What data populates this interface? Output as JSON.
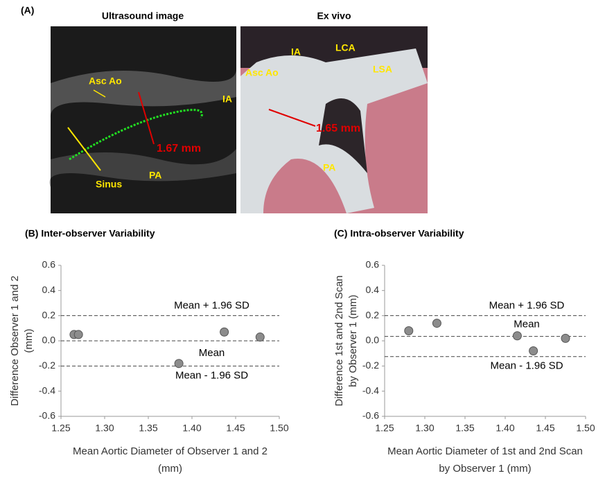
{
  "panel_a": {
    "label": "(A)",
    "images": [
      {
        "title": "Ultrasound image",
        "annotations": [
          "Asc Ao",
          "IA",
          "1.67 mm",
          "Sinus",
          "PA"
        ]
      },
      {
        "title": "Ex vivo",
        "annotations": [
          "IA",
          "LCA",
          "Asc Ao",
          "LSA",
          "1.65 mm",
          "PA"
        ]
      }
    ]
  },
  "chart_data": [
    {
      "type": "scatter",
      "title": "(B) Inter-observer Variability",
      "xlabel": [
        "Mean Aortic Diameter of Observer 1 and 2",
        "(mm)"
      ],
      "ylabel": [
        "Difference Observer 1 and 2",
        "(mm)"
      ],
      "x": [
        1.265,
        1.27,
        1.385,
        1.437,
        1.478
      ],
      "values": [
        0.05,
        0.05,
        -0.18,
        0.07,
        0.03
      ],
      "color": "#8c8c8c",
      "xlim": [
        1.25,
        1.5
      ],
      "ylim": [
        -0.6,
        0.6
      ],
      "xticks": [
        1.25,
        {
          "value": 1.3,
          "label": "1.30"
        },
        1.35,
        {
          "value": 1.4,
          "label": "1.40"
        },
        1.45,
        {
          "value": 1.5,
          "label": "1.50"
        }
      ],
      "yticks": [
        -0.6,
        -0.4,
        -0.2,
        {
          "value": 0,
          "label": "0.0"
        },
        0.2,
        0.4,
        0.6
      ],
      "reference_lines": [
        {
          "value": 0.2,
          "label": "Mean + 1.96 SD"
        },
        {
          "value": 0,
          "label": "Mean"
        },
        {
          "value": -0.2,
          "label": "Mean - 1.96 SD"
        }
      ]
    },
    {
      "type": "scatter",
      "title": "(C) Intra-observer Variability",
      "xlabel": [
        "Mean Aortic Diameter of 1st and 2nd Scan",
        "by Observer 1 (mm)"
      ],
      "ylabel": [
        "Difference 1st and 2nd Scan",
        "by Observer 1 (mm)"
      ],
      "x": [
        1.28,
        1.315,
        1.415,
        1.435,
        1.475
      ],
      "values": [
        0.08,
        0.14,
        0.04,
        -0.08,
        0.02
      ],
      "color": "#8c8c8c",
      "xlim": [
        1.25,
        1.5
      ],
      "ylim": [
        -0.6,
        0.6
      ],
      "xticks": [
        1.25,
        {
          "value": 1.3,
          "label": "1.30"
        },
        1.35,
        {
          "value": 1.4,
          "label": "1.40"
        },
        1.45,
        {
          "value": 1.5,
          "label": "1.50"
        }
      ],
      "yticks": [
        -0.6,
        -0.4,
        -0.2,
        {
          "value": 0,
          "label": "0.0"
        },
        0.2,
        0.4,
        0.6
      ],
      "reference_lines": [
        {
          "value": 0.2,
          "label": "Mean + 1.96 SD"
        },
        {
          "value": 0.035,
          "label": "Mean"
        },
        {
          "value": -0.125,
          "label": "Mean - 1.96 SD"
        }
      ]
    }
  ]
}
